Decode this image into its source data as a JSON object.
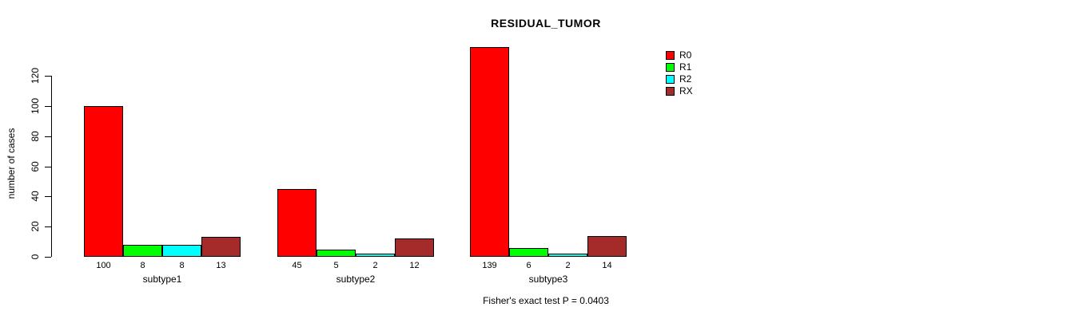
{
  "chart_data": {
    "type": "bar",
    "title": "RESIDUAL_TUMOR",
    "ylabel": "number of cases",
    "xlabel": "",
    "annotation": "Fisher's exact test P = 0.0403",
    "categories": [
      "subtype1",
      "subtype2",
      "subtype3"
    ],
    "series": [
      {
        "name": "R0",
        "color": "#ff0000",
        "values": [
          100,
          45,
          139
        ]
      },
      {
        "name": "R1",
        "color": "#00ff00",
        "values": [
          8,
          5,
          6
        ]
      },
      {
        "name": "R2",
        "color": "#00ffff",
        "values": [
          8,
          2,
          2
        ]
      },
      {
        "name": "RX",
        "color": "#a52a2a",
        "values": [
          13,
          12,
          14
        ]
      }
    ],
    "bar_labels": [
      [
        100,
        8,
        8,
        13
      ],
      [
        45,
        5,
        2,
        12
      ],
      [
        139,
        6,
        2,
        14
      ]
    ],
    "yticks": [
      0,
      20,
      40,
      60,
      80,
      100,
      120
    ],
    "ylim": [
      0,
      145
    ],
    "grid": false,
    "legend_position": "right",
    "bar_border_color": "#000000",
    "background_color": "#ffffff"
  }
}
